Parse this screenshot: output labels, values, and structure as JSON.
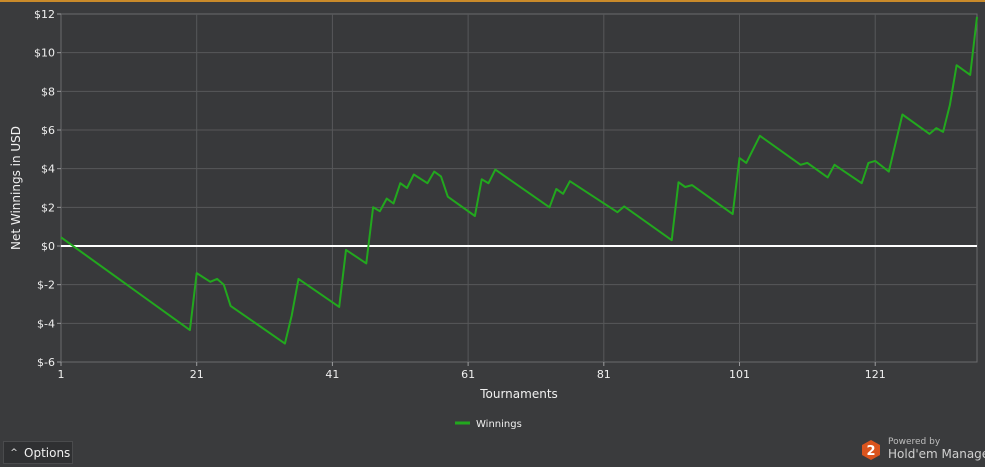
{
  "chart_data": {
    "type": "line",
    "title": "",
    "xlabel": "Tournaments",
    "ylabel": "Net Winnings in USD",
    "xlim": [
      1,
      136
    ],
    "ylim": [
      -6,
      12
    ],
    "x_ticks": [
      1,
      21,
      41,
      61,
      81,
      101,
      121
    ],
    "y_ticks": [
      -6,
      -4,
      -2,
      0,
      2,
      4,
      6,
      8,
      10,
      12
    ],
    "y_tick_labels": [
      "$-6",
      "$-4",
      "$-2",
      "$0",
      "$2",
      "$4",
      "$6",
      "$8",
      "$10",
      "$12"
    ],
    "grid": true,
    "zero_line": true,
    "legend_position": "bottom-center",
    "series": [
      {
        "name": "Winnings",
        "color": "#22a81e",
        "points": [
          [
            1,
            0.45
          ],
          [
            20,
            -4.35
          ],
          [
            21,
            -1.4
          ],
          [
            23,
            -1.85
          ],
          [
            24,
            -1.7
          ],
          [
            25,
            -2.0
          ],
          [
            26,
            -3.1
          ],
          [
            34,
            -5.05
          ],
          [
            35,
            -3.6
          ],
          [
            36,
            -1.7
          ],
          [
            42,
            -3.15
          ],
          [
            43,
            -0.2
          ],
          [
            46,
            -0.9
          ],
          [
            47,
            2.0
          ],
          [
            48,
            1.8
          ],
          [
            49,
            2.45
          ],
          [
            50,
            2.2
          ],
          [
            51,
            3.25
          ],
          [
            52,
            3.0
          ],
          [
            53,
            3.7
          ],
          [
            55,
            3.25
          ],
          [
            56,
            3.85
          ],
          [
            57,
            3.6
          ],
          [
            58,
            2.55
          ],
          [
            62,
            1.55
          ],
          [
            63,
            3.45
          ],
          [
            64,
            3.25
          ],
          [
            65,
            3.95
          ],
          [
            73,
            2.0
          ],
          [
            74,
            2.95
          ],
          [
            75,
            2.7
          ],
          [
            76,
            3.35
          ],
          [
            83,
            1.75
          ],
          [
            84,
            2.05
          ],
          [
            91,
            0.3
          ],
          [
            92,
            3.3
          ],
          [
            93,
            3.05
          ],
          [
            94,
            3.15
          ],
          [
            100,
            1.65
          ],
          [
            101,
            4.55
          ],
          [
            102,
            4.3
          ],
          [
            104,
            5.7
          ],
          [
            110,
            4.2
          ],
          [
            111,
            4.3
          ],
          [
            114,
            3.55
          ],
          [
            115,
            4.2
          ],
          [
            119,
            3.25
          ],
          [
            120,
            4.3
          ],
          [
            121,
            4.4
          ],
          [
            123,
            3.85
          ],
          [
            125,
            6.8
          ],
          [
            129,
            5.8
          ],
          [
            130,
            6.1
          ],
          [
            131,
            5.9
          ],
          [
            132,
            7.3
          ],
          [
            133,
            9.35
          ],
          [
            135,
            8.85
          ],
          [
            136,
            11.85
          ]
        ]
      }
    ]
  },
  "controls": {
    "options_label": "Options"
  },
  "branding": {
    "logo_digit": "2",
    "powered_by": "Powered by",
    "product_name": "Hold'em Manager",
    "logo_color": "#d9541e"
  }
}
